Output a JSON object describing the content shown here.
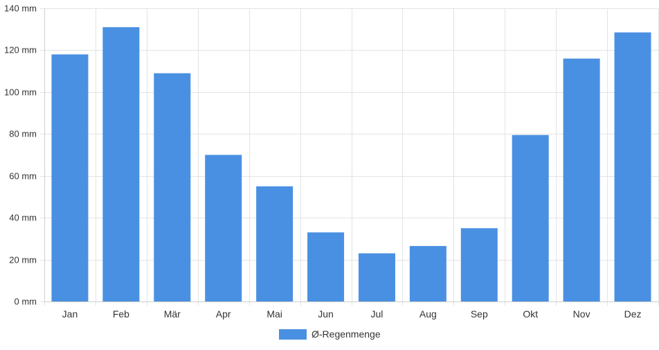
{
  "chart_data": {
    "type": "bar",
    "categories": [
      "Jan",
      "Feb",
      "Mär",
      "Apr",
      "Mai",
      "Jun",
      "Jul",
      "Aug",
      "Sep",
      "Okt",
      "Nov",
      "Dez"
    ],
    "series": [
      {
        "name": "Ø-Regenmenge",
        "values": [
          118,
          131,
          109,
          70,
          55,
          33,
          23,
          26.5,
          35,
          79.5,
          116,
          128.5
        ]
      }
    ],
    "y_unit": "mm",
    "ylim": [
      0,
      140
    ],
    "y_ticks": [
      0,
      20,
      40,
      60,
      80,
      100,
      120,
      140
    ],
    "grid": true,
    "legend_position": "bottom",
    "bar_color": "#4a90e2"
  }
}
